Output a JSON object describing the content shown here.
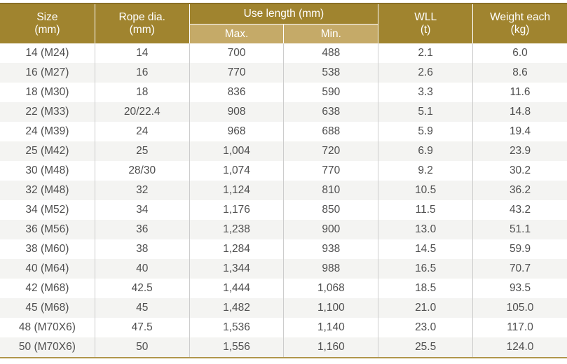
{
  "table": {
    "header": {
      "size_l1": "Size",
      "size_l2": "(mm)",
      "rope_l1": "Rope dia.",
      "rope_l2": "(mm)",
      "use_length": "Use length (mm)",
      "max": "Max.",
      "min": "Min.",
      "wll_l1": "WLL",
      "wll_l2": "(t)",
      "weight_l1": "Weight each",
      "weight_l2": "(kg)"
    },
    "rows": [
      [
        "14 (M24)",
        "14",
        "700",
        "488",
        "2.1",
        "6.0"
      ],
      [
        "16 (M27)",
        "16",
        "770",
        "538",
        "2.6",
        "8.6"
      ],
      [
        "18 (M30)",
        "18",
        "836",
        "590",
        "3.3",
        "11.6"
      ],
      [
        "22 (M33)",
        "20/22.4",
        "908",
        "638",
        "5.1",
        "14.8"
      ],
      [
        "24 (M39)",
        "24",
        "968",
        "688",
        "5.9",
        "19.4"
      ],
      [
        "25 (M42)",
        "25",
        "1,004",
        "720",
        "6.9",
        "23.9"
      ],
      [
        "30 (M48)",
        "28/30",
        "1,074",
        "770",
        "9.2",
        "30.2"
      ],
      [
        "32 (M48)",
        "32",
        "1,124",
        "810",
        "10.5",
        "36.2"
      ],
      [
        "34 (M52)",
        "34",
        "1,176",
        "850",
        "11.5",
        "43.2"
      ],
      [
        "36 (M56)",
        "36",
        "1,238",
        "900",
        "13.0",
        "51.1"
      ],
      [
        "38 (M60)",
        "38",
        "1,284",
        "938",
        "14.5",
        "59.9"
      ],
      [
        "40 (M64)",
        "40",
        "1,344",
        "988",
        "16.5",
        "70.7"
      ],
      [
        "42 (M68)",
        "42.5",
        "1,444",
        "1,068",
        "18.5",
        "93.5"
      ],
      [
        "45 (M68)",
        "45",
        "1,482",
        "1,100",
        "21.0",
        "105.0"
      ],
      [
        "48 (M70X6)",
        "47.5",
        "1,536",
        "1,140",
        "23.0",
        "117.0"
      ],
      [
        "50 (M70X6)",
        "50",
        "1,556",
        "1,160",
        "25.5",
        "124.0"
      ]
    ]
  },
  "colors": {
    "header_gold": "#a0842f",
    "header_top_line": "#8a6f26",
    "subheader_tan": "#c5aa68",
    "row_alt": "#f4f4f2",
    "divider": "#cccccc",
    "body_text": "#4f4f4f",
    "bottom_line": "#b0964c",
    "header_text": "#ffffff"
  }
}
